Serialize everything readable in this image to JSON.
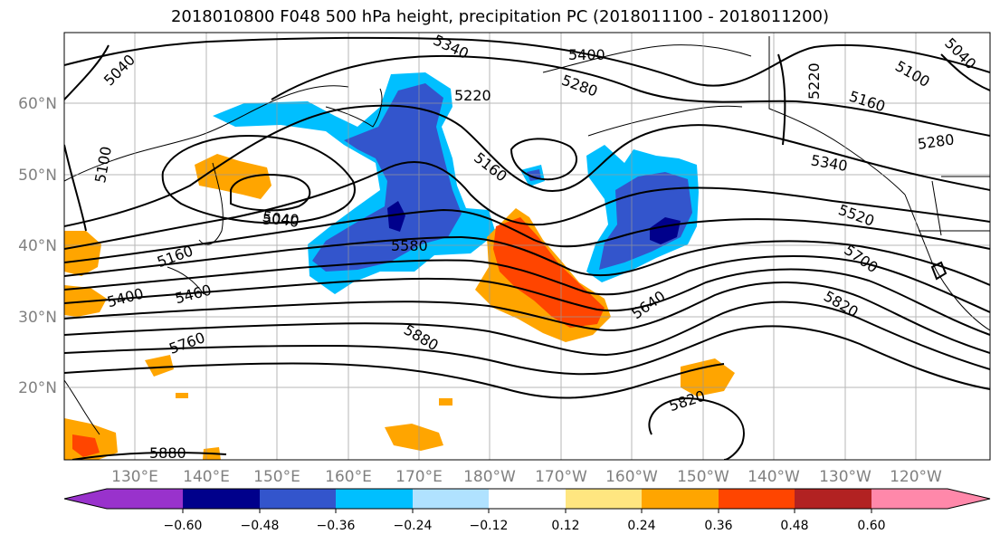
{
  "title": "2018010800 F048 500 hPa height, precipitation PC (2018011100 - 2018011200)",
  "lat_ticks": [
    "60°N",
    "50°N",
    "40°N",
    "30°N",
    "20°N"
  ],
  "lon_ticks": [
    "130°E",
    "140°E",
    "150°E",
    "160°E",
    "170°E",
    "180°W",
    "170°W",
    "160°W",
    "150°W",
    "140°W",
    "130°W",
    "120°W"
  ],
  "contour_labels": [
    "5040",
    "5340",
    "5400",
    "5220",
    "5280",
    "5160",
    "5100",
    "5040",
    "5220",
    "5160",
    "5280",
    "5340",
    "5520",
    "5160",
    "5040",
    "5580",
    "5700",
    "5400",
    "5460",
    "5640",
    "5820",
    "5760",
    "5880",
    "5820",
    "5880",
    "5100",
    "5040"
  ],
  "colorbar": {
    "colors": [
      "#9932cc",
      "#00008b",
      "#3355cc",
      "#00bfff",
      "#b0e2ff",
      "#ffffff",
      "#ffe680",
      "#ffa500",
      "#ff4500",
      "#b22222",
      "#ff88aa"
    ],
    "labels": [
      "−0.60",
      "−0.48",
      "−0.36",
      "−0.24",
      "−0.12",
      "0.12",
      "0.24",
      "0.36",
      "0.48",
      "0.60"
    ]
  }
}
